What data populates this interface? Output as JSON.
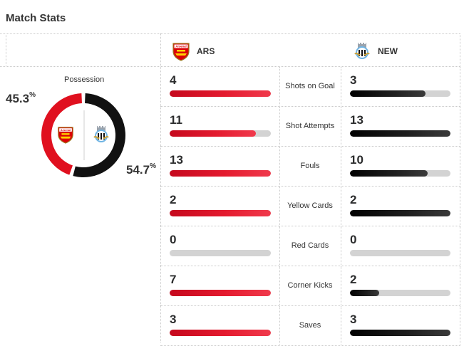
{
  "title": "Match Stats",
  "teams": {
    "home": {
      "abbr": "ARS",
      "crest_text": "Arsenal",
      "color": "#e0101f"
    },
    "away": {
      "abbr": "NEW",
      "color": "#111111"
    }
  },
  "possession": {
    "label": "Possession",
    "home_value": "45.3",
    "away_value": "54.7",
    "unit": "%",
    "home_fraction": 0.453,
    "away_fraction": 0.547
  },
  "stats": [
    {
      "label": "Shots on Goal",
      "home": "4",
      "away": "3",
      "home_fill": 1.0,
      "away_fill": 0.75
    },
    {
      "label": "Shot Attempts",
      "home": "11",
      "away": "13",
      "home_fill": 0.85,
      "away_fill": 1.0
    },
    {
      "label": "Fouls",
      "home": "13",
      "away": "10",
      "home_fill": 1.0,
      "away_fill": 0.77
    },
    {
      "label": "Yellow Cards",
      "home": "2",
      "away": "2",
      "home_fill": 1.0,
      "away_fill": 1.0
    },
    {
      "label": "Red Cards",
      "home": "0",
      "away": "0",
      "home_fill": 0.0,
      "away_fill": 0.0
    },
    {
      "label": "Corner Kicks",
      "home": "7",
      "away": "2",
      "home_fill": 1.0,
      "away_fill": 0.29
    },
    {
      "label": "Saves",
      "home": "3",
      "away": "3",
      "home_fill": 1.0,
      "away_fill": 1.0
    }
  ]
}
